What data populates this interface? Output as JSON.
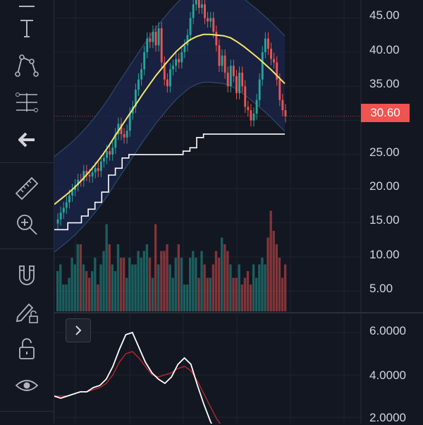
{
  "toolbar": {
    "tools": [
      {
        "icon": "cursor-icon"
      },
      {
        "icon": "text-tool-icon"
      },
      {
        "icon": "pattern-tool-icon"
      },
      {
        "icon": "fib-tool-icon"
      },
      {
        "icon": "back-arrow-icon"
      },
      {
        "icon": "ruler-icon"
      },
      {
        "icon": "zoom-in-icon"
      },
      {
        "icon": "magnet-icon"
      },
      {
        "icon": "lock-drawing-icon"
      },
      {
        "icon": "unlock-icon"
      },
      {
        "icon": "eye-icon"
      }
    ]
  },
  "price_axis": {
    "ticks": [
      "45.00",
      "40.00",
      "35.00",
      "30.00",
      "25.00",
      "20.00",
      "15.00",
      "10.00",
      "5.00"
    ],
    "current_price": "30.60"
  },
  "oscillator_axis": {
    "ticks": [
      "6.0000",
      "4.0000",
      "2.0000"
    ]
  },
  "colors": {
    "background": "#131722",
    "up": "#26a69a",
    "down": "#ef5350",
    "ma": "#f5e56b",
    "band": "#2962ff",
    "current_price_tag": "#f05350"
  },
  "chart_data": {
    "type": "candlestick",
    "ylim": [
      0,
      47
    ],
    "ohlc_close": [
      15.5,
      16.5,
      17.2,
      18,
      19,
      19.8,
      20.5,
      21.3,
      21.2,
      22.6,
      22,
      21.8,
      22.4,
      23,
      22.6,
      24,
      24.5,
      25.5,
      25,
      26,
      28,
      29.5,
      28,
      27.5,
      28.5,
      31,
      32,
      34.5,
      36,
      37.5,
      40,
      42,
      41.5,
      43,
      41,
      43.5,
      38.5,
      36,
      35,
      37.5,
      38,
      39,
      38.5,
      40,
      41,
      42.5,
      45,
      47,
      48,
      46.5,
      47,
      45,
      44.5,
      45,
      43,
      41,
      38,
      39.5,
      37,
      35,
      38,
      36.5,
      34,
      37,
      35,
      32,
      31.5,
      30,
      31,
      33,
      36,
      40,
      42,
      40.5,
      39,
      38.5,
      36,
      33,
      31.5,
      30.6
    ],
    "moving_average": [
      17.7,
      18.5,
      19.3,
      20.2,
      21.2,
      22.3,
      23.5,
      24.8,
      26.2,
      27.8,
      29.3,
      30.8,
      32.3,
      33.8,
      35.2,
      36.6,
      37.8,
      39,
      40.1,
      41,
      41.8,
      42.3,
      42.6,
      42.6,
      42.5,
      42.4,
      42.1,
      41.5,
      40.8,
      40,
      39.2,
      38.3,
      37.4,
      36.4,
      35.4
    ],
    "stop_line": [
      14,
      14,
      15,
      15,
      16,
      17,
      18,
      19.5,
      22,
      23,
      24.5,
      25,
      25,
      25,
      25,
      25,
      25,
      25,
      25,
      25.5,
      26,
      27.5,
      28,
      28,
      28,
      28,
      28,
      28,
      28,
      28,
      28,
      28,
      28,
      28,
      28
    ],
    "volume": [
      6,
      7,
      4,
      4,
      5,
      8,
      7,
      10,
      10,
      7,
      6,
      5,
      6,
      8,
      4,
      7,
      9,
      13,
      10,
      7,
      6,
      10,
      8,
      8,
      5,
      8,
      7,
      7,
      9,
      8,
      9,
      10,
      8,
      5,
      13,
      7,
      9,
      9,
      10,
      7,
      5,
      8,
      10,
      8,
      4,
      4,
      8,
      9,
      8,
      5,
      9,
      7,
      5,
      5,
      7,
      9,
      8,
      11,
      10,
      9,
      7,
      5,
      5,
      7,
      4,
      5,
      6,
      4,
      7,
      5,
      7,
      8,
      7,
      11,
      15,
      12,
      10,
      8,
      5,
      7
    ],
    "oscillator": [
      3,
      2.9,
      3,
      3.1,
      3.2,
      3.2,
      3.4,
      3.5,
      3.8,
      4.4,
      5.2,
      5.9,
      6,
      5.3,
      4.6,
      4.1,
      3.8,
      3.6,
      3.9,
      4.5,
      4.8,
      4.5,
      3.5,
      2.6,
      1.8,
      1.2,
      0.8
    ],
    "oscillator_signal": [
      3,
      3,
      3,
      3.1,
      3.2,
      3.2,
      3.3,
      3.4,
      3.6,
      4,
      4.6,
      5,
      5.1,
      4.8,
      4.4,
      4,
      3.9,
      4,
      4.1,
      4.3,
      4.4,
      4.2,
      3.7,
      3.1,
      2.5,
      1.9,
      1.5
    ]
  }
}
